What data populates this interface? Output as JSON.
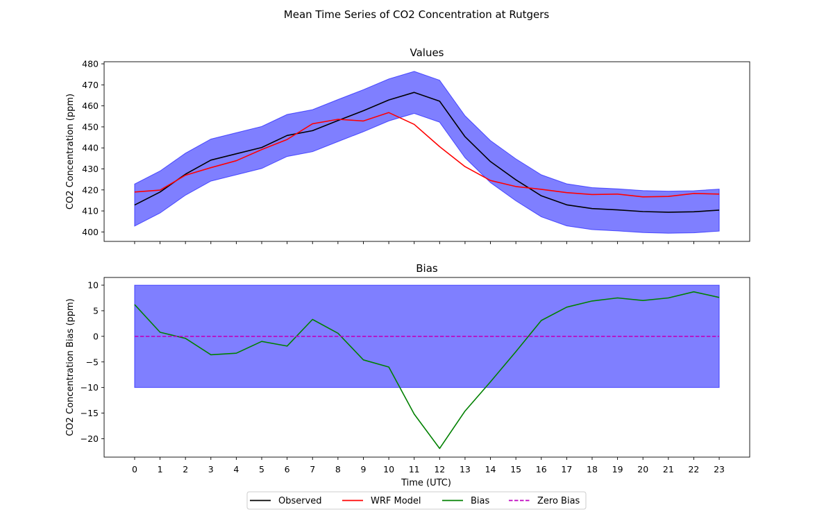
{
  "figure": {
    "suptitle": "Mean Time Series of CO2 Concentration at Rutgers",
    "xlabel": "Time (UTC)"
  },
  "legend": {
    "placement": "bottom-center",
    "entries": [
      {
        "label": "Observed",
        "color": "#000000",
        "style": "solid"
      },
      {
        "label": "WRF Model",
        "color": "#ff0000",
        "style": "solid"
      },
      {
        "label": "Bias",
        "color": "#008000",
        "style": "solid"
      },
      {
        "label": "Zero Bias",
        "color": "#bf00bf",
        "style": "dashed"
      }
    ]
  },
  "chart_data": [
    {
      "type": "line",
      "title": "Values",
      "xlabel": "",
      "ylabel": "CO2 Concentration (ppm)",
      "x": [
        0,
        1,
        2,
        3,
        4,
        5,
        6,
        7,
        8,
        9,
        10,
        11,
        12,
        13,
        14,
        15,
        16,
        17,
        18,
        19,
        20,
        21,
        22,
        23
      ],
      "xlim": [
        -1.2,
        24.2
      ],
      "ylim": [
        395.5,
        481
      ],
      "yticks": [
        400,
        410,
        420,
        430,
        440,
        450,
        460,
        470,
        480
      ],
      "grid": false,
      "series": [
        {
          "name": "Observed",
          "color": "#000000",
          "values": [
            412.8,
            419.0,
            427.5,
            434.2,
            437.2,
            440.2,
            445.9,
            448.2,
            453.0,
            457.7,
            462.8,
            466.4,
            462.2,
            445.3,
            433.5,
            424.8,
            417.2,
            412.9,
            411.1,
            410.5,
            409.7,
            409.4,
            409.6,
            410.4
          ]
        },
        {
          "name": "WRF Model",
          "color": "#ff0000",
          "values": [
            419.0,
            419.9,
            427.0,
            430.6,
            433.9,
            439.2,
            444.0,
            451.5,
            453.6,
            452.8,
            456.8,
            451.2,
            440.6,
            431.1,
            424.5,
            421.6,
            420.3,
            418.7,
            417.8,
            418.0,
            416.7,
            416.9,
            418.3,
            418.0
          ]
        }
      ],
      "band": {
        "color": "#0000ff",
        "opacity": 0.5,
        "lower": [
          402.8,
          409.0,
          417.5,
          424.2,
          427.2,
          430.2,
          435.9,
          438.2,
          443.0,
          447.7,
          452.8,
          456.4,
          452.2,
          435.3,
          423.5,
          414.8,
          407.2,
          402.9,
          401.1,
          400.5,
          399.7,
          399.4,
          399.6,
          400.4
        ],
        "upper": [
          422.8,
          429.0,
          437.5,
          444.2,
          447.2,
          450.2,
          455.9,
          458.2,
          463.0,
          467.7,
          472.8,
          476.4,
          472.2,
          455.3,
          443.5,
          434.8,
          427.2,
          422.9,
          421.1,
          420.5,
          419.7,
          419.4,
          419.6,
          420.4
        ]
      }
    },
    {
      "type": "line",
      "title": "Bias",
      "xlabel": "Time (UTC)",
      "ylabel": "CO2 Concentration Bias (ppm)",
      "x": [
        0,
        1,
        2,
        3,
        4,
        5,
        6,
        7,
        8,
        9,
        10,
        11,
        12,
        13,
        14,
        15,
        16,
        17,
        18,
        19,
        20,
        21,
        22,
        23
      ],
      "xlim": [
        -1.2,
        24.2
      ],
      "ylim": [
        -23.6,
        11.5
      ],
      "yticks": [
        10,
        5,
        0,
        -5,
        -10,
        -15,
        -20
      ],
      "grid": false,
      "series": [
        {
          "name": "Bias",
          "color": "#008000",
          "values": [
            6.2,
            0.8,
            -0.4,
            -3.6,
            -3.3,
            -1.0,
            -1.9,
            3.3,
            0.6,
            -4.6,
            -6.0,
            -15.2,
            -21.9,
            -14.6,
            -8.9,
            -3.0,
            3.1,
            5.7,
            6.9,
            7.5,
            7.0,
            7.5,
            8.7,
            7.6
          ]
        },
        {
          "name": "Zero Bias",
          "color": "#bf00bf",
          "style": "dashed",
          "values": [
            0,
            0,
            0,
            0,
            0,
            0,
            0,
            0,
            0,
            0,
            0,
            0,
            0,
            0,
            0,
            0,
            0,
            0,
            0,
            0,
            0,
            0,
            0,
            0
          ]
        }
      ],
      "band": {
        "color": "#0000ff",
        "opacity": 0.5,
        "lower": -10,
        "upper": 10
      }
    }
  ]
}
